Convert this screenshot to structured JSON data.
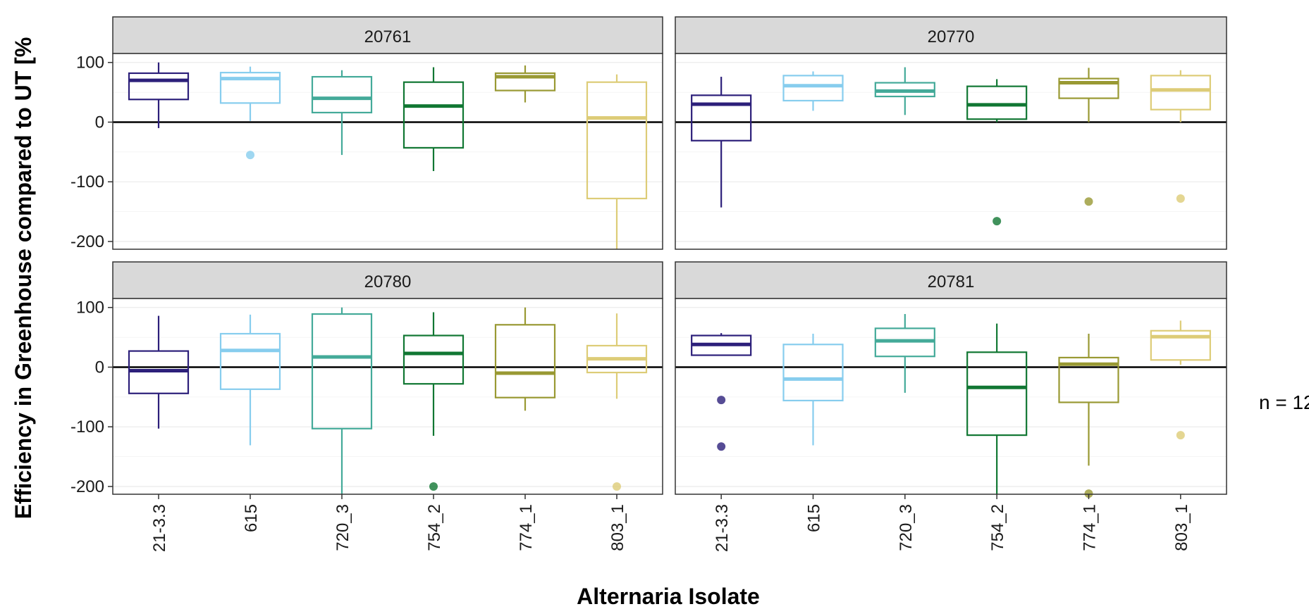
{
  "chart_data": {
    "type": "boxplot",
    "xlabel": "Alternaria Isolate",
    "ylabel": "Efficiency in Greenhouse compared to UT [%",
    "ylim": [
      -213,
      115
    ],
    "yticks": [
      100,
      0,
      -100,
      -200
    ],
    "reference_line_y": 0,
    "grid": true,
    "annotation": "n = 12",
    "categories": [
      "21-3.3",
      "615",
      "720_3",
      "754_2",
      "774_1",
      "803_1"
    ],
    "colors": {
      "21-3.3": "#2c1f7a",
      "615": "#87cdee",
      "720_3": "#44aa99",
      "754_2": "#117733",
      "774_1": "#999933",
      "803_1": "#ddcc77"
    },
    "panels": [
      {
        "title": "20761",
        "boxes": [
          {
            "category": "21-3.3",
            "lower_whisker": -10,
            "q1": 38,
            "median": 70,
            "q3": 82,
            "upper_whisker": 100,
            "outliers": []
          },
          {
            "category": "615",
            "lower_whisker": 2,
            "q1": 32,
            "median": 73,
            "q3": 83,
            "upper_whisker": 93,
            "outliers": [
              -55
            ]
          },
          {
            "category": "720_3",
            "lower_whisker": -55,
            "q1": 16,
            "median": 40,
            "q3": 76,
            "upper_whisker": 87,
            "outliers": []
          },
          {
            "category": "754_2",
            "lower_whisker": -82,
            "q1": -43,
            "median": 27,
            "q3": 67,
            "upper_whisker": 92,
            "outliers": []
          },
          {
            "category": "774_1",
            "lower_whisker": 33,
            "q1": 53,
            "median": 76,
            "q3": 82,
            "upper_whisker": 95,
            "outliers": []
          },
          {
            "category": "803_1",
            "lower_whisker": -213,
            "q1": -128,
            "median": 7,
            "q3": 67,
            "upper_whisker": 80,
            "outliers": []
          }
        ]
      },
      {
        "title": "20770",
        "boxes": [
          {
            "category": "21-3.3",
            "lower_whisker": -143,
            "q1": -31,
            "median": 30,
            "q3": 45,
            "upper_whisker": 76,
            "outliers": []
          },
          {
            "category": "615",
            "lower_whisker": 19,
            "q1": 36,
            "median": 61,
            "q3": 78,
            "upper_whisker": 85,
            "outliers": []
          },
          {
            "category": "720_3",
            "lower_whisker": 12,
            "q1": 43,
            "median": 52,
            "q3": 66,
            "upper_whisker": 92,
            "outliers": []
          },
          {
            "category": "754_2",
            "lower_whisker": 0,
            "q1": 5,
            "median": 29,
            "q3": 60,
            "upper_whisker": 72,
            "outliers": [
              -166
            ]
          },
          {
            "category": "774_1",
            "lower_whisker": 0,
            "q1": 40,
            "median": 66,
            "q3": 73,
            "upper_whisker": 91,
            "outliers": [
              -133
            ]
          },
          {
            "category": "803_1",
            "lower_whisker": 0,
            "q1": 21,
            "median": 54,
            "q3": 78,
            "upper_whisker": 87,
            "outliers": [
              -128
            ]
          }
        ]
      },
      {
        "title": "20780",
        "boxes": [
          {
            "category": "21-3.3",
            "lower_whisker": -103,
            "q1": -44,
            "median": -6,
            "q3": 27,
            "upper_whisker": 86,
            "outliers": []
          },
          {
            "category": "615",
            "lower_whisker": -131,
            "q1": -37,
            "median": 28,
            "q3": 56,
            "upper_whisker": 88,
            "outliers": []
          },
          {
            "category": "720_3",
            "lower_whisker": -213,
            "q1": -103,
            "median": 17,
            "q3": 89,
            "upper_whisker": 100,
            "outliers": []
          },
          {
            "category": "754_2",
            "lower_whisker": -115,
            "q1": -28,
            "median": 23,
            "q3": 53,
            "upper_whisker": 92,
            "outliers": [
              -200
            ]
          },
          {
            "category": "774_1",
            "lower_whisker": -73,
            "q1": -51,
            "median": -10,
            "q3": 71,
            "upper_whisker": 100,
            "outliers": []
          },
          {
            "category": "803_1",
            "lower_whisker": -53,
            "q1": -9,
            "median": 14,
            "q3": 36,
            "upper_whisker": 90,
            "outliers": [
              -200
            ]
          }
        ]
      },
      {
        "title": "20781",
        "boxes": [
          {
            "category": "21-3.3",
            "lower_whisker": 20,
            "q1": 20,
            "median": 38,
            "q3": 53,
            "upper_whisker": 57,
            "outliers": [
              -55,
              -133
            ]
          },
          {
            "category": "615",
            "lower_whisker": -131,
            "q1": -56,
            "median": -20,
            "q3": 38,
            "upper_whisker": 56,
            "outliers": []
          },
          {
            "category": "720_3",
            "lower_whisker": -43,
            "q1": 18,
            "median": 44,
            "q3": 65,
            "upper_whisker": 89,
            "outliers": []
          },
          {
            "category": "754_2",
            "lower_whisker": -213,
            "q1": -114,
            "median": -34,
            "q3": 25,
            "upper_whisker": 73,
            "outliers": []
          },
          {
            "category": "774_1",
            "lower_whisker": -165,
            "q1": -59,
            "median": 5,
            "q3": 16,
            "upper_whisker": 56,
            "outliers": [
              -212
            ]
          },
          {
            "category": "803_1",
            "lower_whisker": 4,
            "q1": 12,
            "median": 51,
            "q3": 61,
            "upper_whisker": 78,
            "outliers": [
              -114
            ]
          }
        ]
      }
    ]
  }
}
